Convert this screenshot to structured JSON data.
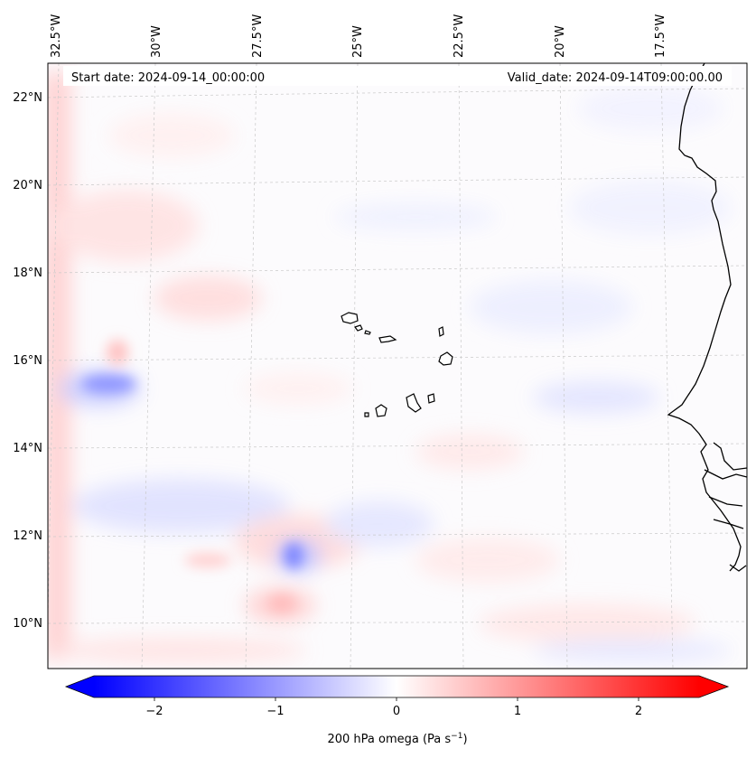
{
  "map": {
    "start_date_text": "Start date: 2024-09-14_00:00:00",
    "valid_date_text": "Valid_date: 2024-09-14T09:00:00.00",
    "lon_labels": [
      "32.5°W",
      "30°W",
      "27.5°W",
      "25°W",
      "22.5°W",
      "20°W",
      "17.5°W"
    ],
    "lat_labels": [
      "22°N",
      "20°N",
      "18°N",
      "16°N",
      "14°N",
      "12°N",
      "10°N"
    ],
    "colors": {
      "negative": "#0000ff",
      "zero": "#ffffff",
      "positive": "#ff0000",
      "coast": "#000000"
    }
  },
  "colorbar": {
    "ticks": [
      "−2",
      "−1",
      "0",
      "1",
      "2"
    ],
    "range": [
      -2.75,
      2.75
    ],
    "label_main": "200 hPa omega (Pa s",
    "label_sup": "−1",
    "label_end": ")"
  }
}
